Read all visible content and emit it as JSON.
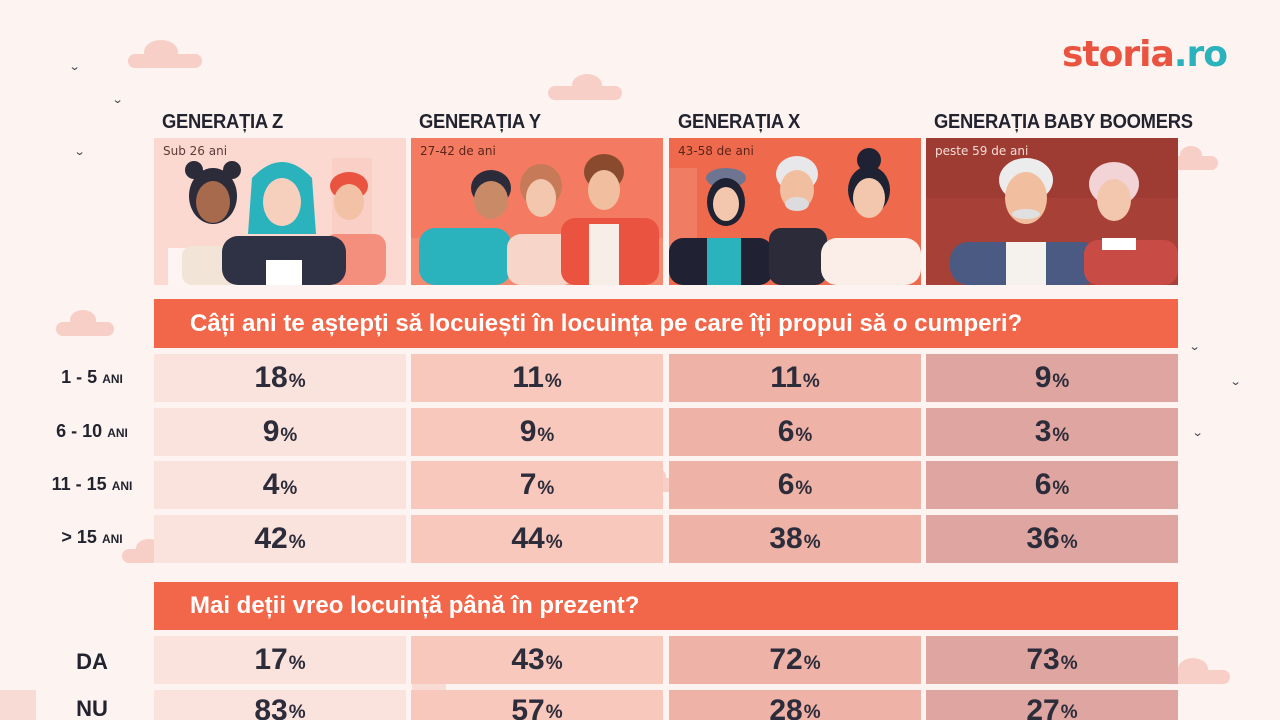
{
  "logo": {
    "part1": "storia",
    "part2": ".ro"
  },
  "generations": [
    {
      "title": "GENERAȚIA Z",
      "age": "Sub 26 ani"
    },
    {
      "title": "GENERAȚIA Y",
      "age": "27-42 de ani"
    },
    {
      "title": "GENERAȚIA X",
      "age": "43-58 de ani"
    },
    {
      "title": "GENERAȚIA BABY BOOMERS",
      "age": "peste 59 de ani"
    }
  ],
  "question1": {
    "text": "Câți ani te aștepți să locuiești în locuința pe care îți propui să o cumperi?",
    "rows": [
      {
        "label_main": "1 - 5",
        "label_unit": "ANI",
        "values": [
          "18",
          "11",
          "11",
          "9"
        ]
      },
      {
        "label_main": "6 - 10",
        "label_unit": "ANI",
        "values": [
          "9",
          "9",
          "6",
          "3"
        ]
      },
      {
        "label_main": "11 - 15",
        "label_unit": "ANI",
        "values": [
          "4",
          "7",
          "6",
          "6"
        ]
      },
      {
        "label_main": "> 15",
        "label_unit": "ANI",
        "values": [
          "42",
          "44",
          "38",
          "36"
        ]
      }
    ]
  },
  "question2": {
    "text": "Mai deții vreo locuință până în prezent?",
    "rows": [
      {
        "label": "DA",
        "values": [
          "17",
          "43",
          "72",
          "73"
        ]
      },
      {
        "label": "NU",
        "values": [
          "83",
          "57",
          "28",
          "27"
        ]
      }
    ]
  },
  "percent_sign": "%",
  "colors": {
    "banner": "#f26649",
    "column_bg": [
      "#fbe3dd",
      "#f8c8bc",
      "#efb2a7",
      "#dfa6a1"
    ],
    "logo_primary": "#e9533f",
    "logo_accent": "#2ab3bd"
  }
}
